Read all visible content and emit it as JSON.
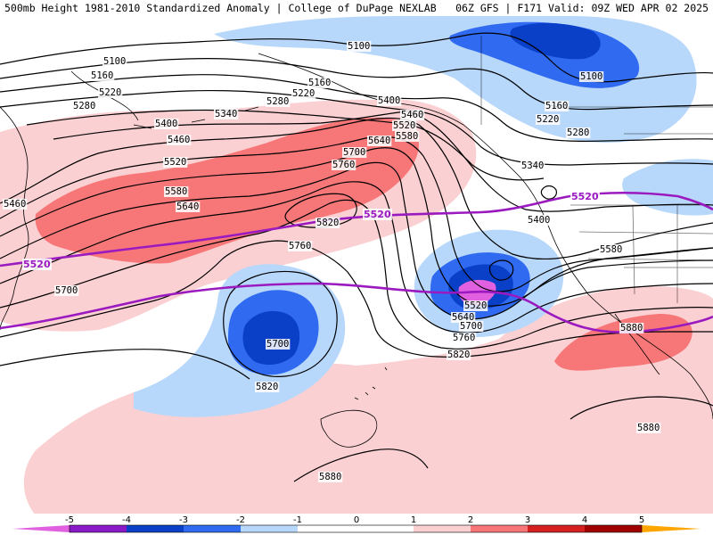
{
  "header": {
    "left": "500mb Height 1981-2010 Standardized Anomaly | College of DuPage NEXLAB",
    "right": "06Z GFS | F171 Valid: 09Z WED APR 02 2025"
  },
  "colors": {
    "anom_neg5": "#e060e0",
    "anom_neg4": "#8a1ac8",
    "anom_neg3": "#0a3fc8",
    "anom_neg2": "#2f6af0",
    "anom_neg1": "#b8d8fb",
    "anom_pos1": "#fbd0d3",
    "anom_pos2": "#f77778",
    "anom_pos3": "#d42020",
    "anom_pos4": "#a00000",
    "anom_pos5": "#ffa500",
    "reference_contour": "#9a1ac0",
    "height_contour": "#000000",
    "coastline": "#000000"
  },
  "map": {
    "contour_labels": {
      "c5100_a": "5100",
      "c5100_b": "5100",
      "c5100_c": "5100",
      "c5160_a": "5160",
      "c5160_b": "5160",
      "c5160_c": "5160",
      "c5220_a": "5220",
      "c5220_b": "5220",
      "c5220_c": "5220",
      "c5280_a": "5280",
      "c5280_b": "5280",
      "c5280_c": "5280",
      "c5340_a": "5340",
      "c5340_b": "5340",
      "c5400_a": "5400",
      "c5400_b": "5400",
      "c5400_c": "5400",
      "c5460_a": "5460",
      "c5460_b": "5460",
      "c5460_c": "5460",
      "c5520_a": "5520",
      "c5520_b": "5520",
      "c5520_c": "5520",
      "c5580_a": "5580",
      "c5580_b": "5580",
      "c5580_c": "5580",
      "c5640_a": "5640",
      "c5640_b": "5640",
      "c5640_c": "5640",
      "c5700_a": "5700",
      "c5700_b": "5700",
      "c5700_c": "5700",
      "c5700_d": "5700",
      "c5760_a": "5760",
      "c5760_b": "5760",
      "c5760_c": "5760",
      "c5820_a": "5820",
      "c5820_b": "5820",
      "c5820_c": "5820",
      "c5880_a": "5880",
      "c5880_b": "5880",
      "c5880_c": "5880",
      "ref_a": "5520",
      "ref_b": "5520",
      "ref_c": "5520"
    }
  },
  "legend": {
    "ticks": [
      "-5",
      "-4",
      "-3",
      "-2",
      "-1",
      "0",
      "1",
      "2",
      "3",
      "4",
      "5"
    ]
  }
}
